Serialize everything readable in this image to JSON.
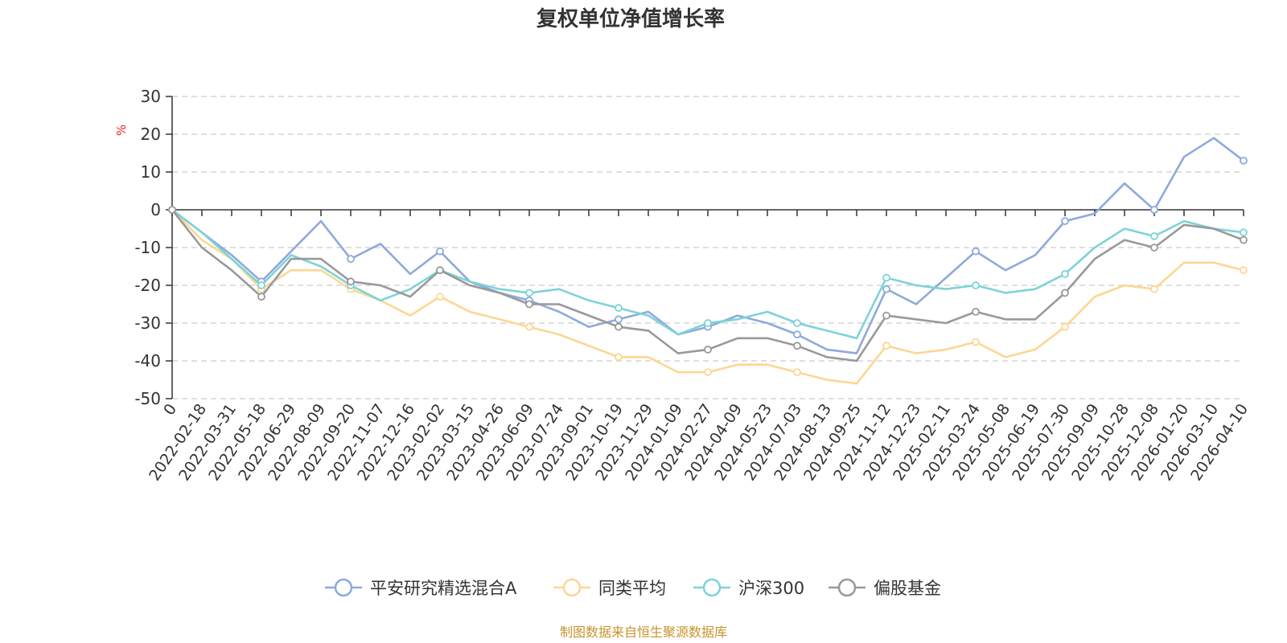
{
  "chart_data": {
    "type": "line",
    "title": "复权单位净值增长率",
    "ylabel": "%",
    "ylim": [
      -50,
      30
    ],
    "yticks": [
      30,
      20,
      10,
      0,
      -10,
      -20,
      -30,
      -40,
      -50
    ],
    "x_tick_labels": [
      "0",
      "2022-02-18",
      "2022-03-31",
      "2022-05-18",
      "2022-06-29",
      "2022-08-09",
      "2022-09-20",
      "2022-11-07",
      "2022-12-16",
      "2023-02-02",
      "2023-03-15",
      "2023-04-26",
      "2023-06-09",
      "2023-07-24",
      "2023-09-01",
      "2023-10-19",
      "2023-11-29",
      "2024-01-09",
      "2024-02-27",
      "2024-04-09",
      "2024-05-23",
      "2024-07-03",
      "2024-08-13",
      "2024-09-25",
      "2024-11-12",
      "2024-12-23",
      "2025-02-11",
      "2025-03-24",
      "2025-05-08",
      "2025-06-19",
      "2025-07-30",
      "2025-09-09",
      "2025-10-28",
      "2025-12-08",
      "2026-01-20",
      "2026-03-10",
      "2026-04-10"
    ],
    "legend_position": "bottom-center",
    "series": [
      {
        "name": "平安研究精选混合A",
        "color": "#8eaadb",
        "values": [
          0,
          -6,
          -12,
          -19,
          -11,
          -3,
          -13,
          -9,
          -17,
          -11,
          -19,
          -22,
          -24,
          -27,
          -31,
          -29,
          -27,
          -33,
          -31,
          -28,
          -30,
          -33,
          -37,
          -38,
          -21,
          -25,
          -18,
          -11,
          -16,
          -12,
          -3,
          -1,
          7,
          0,
          14,
          19,
          13
        ]
      },
      {
        "name": "同类平均",
        "color": "#fdd692",
        "values": [
          0,
          -8,
          -13,
          -21,
          -16,
          -16,
          -21,
          -24,
          -28,
          -23,
          -27,
          -29,
          -31,
          -33,
          -36,
          -39,
          -39,
          -43,
          -43,
          -41,
          -41,
          -43,
          -45,
          -46,
          -36,
          -38,
          -37,
          -35,
          -39,
          -37,
          -31,
          -23,
          -20,
          -21,
          -14,
          -14,
          -16
        ]
      },
      {
        "name": "沪深300",
        "color": "#7dd3d8",
        "values": [
          0,
          -6,
          -13,
          -20,
          -12,
          -15,
          -20,
          -24,
          -21,
          -16,
          -19,
          -21,
          -22,
          -21,
          -24,
          -26,
          -28,
          -33,
          -30,
          -29,
          -27,
          -30,
          -32,
          -34,
          -18,
          -20,
          -21,
          -20,
          -22,
          -21,
          -17,
          -10,
          -5,
          -7,
          -3,
          -5,
          -6
        ]
      },
      {
        "name": "偏股基金",
        "color": "#999999",
        "values": [
          0,
          -10,
          -16,
          -23,
          -13,
          -13,
          -19,
          -20,
          -23,
          -16,
          -20,
          -22,
          -25,
          -25,
          -28,
          -31,
          -32,
          -38,
          -37,
          -34,
          -34,
          -36,
          -39,
          -40,
          -28,
          -29,
          -30,
          -27,
          -29,
          -29,
          -22,
          -13,
          -8,
          -10,
          -4,
          -5,
          -8
        ]
      }
    ]
  },
  "footer": {
    "source": "制图数据来自恒生聚源数据库"
  }
}
